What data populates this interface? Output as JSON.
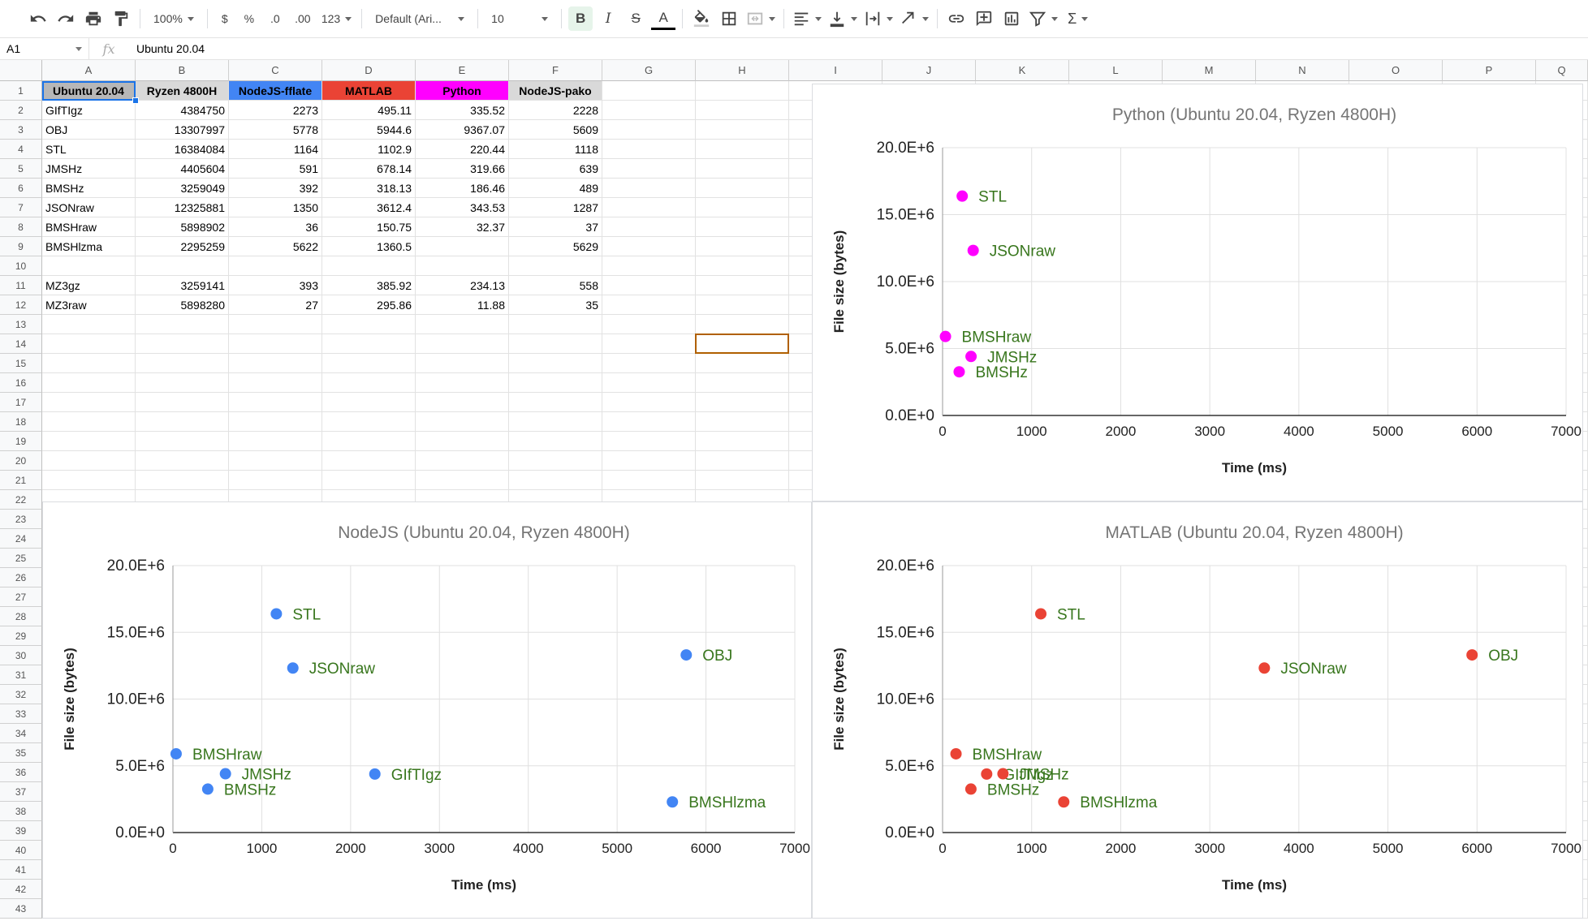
{
  "toolbar": {
    "zoom": "100%",
    "currency": "$",
    "percent": "%",
    "decrease_decimal": ".0",
    "increase_decimal": ".00",
    "number_format": "123",
    "font_family": "Default (Ari...",
    "font_size": "10",
    "bold": "B",
    "italic": "I",
    "strike": "S",
    "text_color": "A",
    "sum": "Σ"
  },
  "formula_bar": {
    "cell_ref": "A1",
    "fx": "fx",
    "value": "Ubuntu 20.04"
  },
  "columns": [
    "A",
    "B",
    "C",
    "D",
    "E",
    "F",
    "G",
    "H",
    "I",
    "J",
    "K",
    "L",
    "M",
    "N",
    "O",
    "P",
    "Q"
  ],
  "row_numbers": [
    "1",
    "2",
    "3",
    "4",
    "5",
    "6",
    "7",
    "8",
    "9",
    "10",
    "11",
    "12",
    "13",
    "14",
    "15",
    "16",
    "17",
    "18",
    "19",
    "20",
    "21",
    "22",
    "23",
    "24",
    "25",
    "26",
    "27",
    "28",
    "29",
    "30",
    "31",
    "32",
    "33",
    "34",
    "35",
    "36",
    "37",
    "38",
    "39",
    "40",
    "41",
    "42",
    "43"
  ],
  "headers": [
    {
      "text": "Ubuntu 20.04",
      "bg": "#b7b7b7",
      "color": "#000000"
    },
    {
      "text": "Ryzen 4800H",
      "bg": "#d9d9d9",
      "color": "#000000"
    },
    {
      "text": "NodeJS-fflate",
      "bg": "#4285f4",
      "color": "#000000"
    },
    {
      "text": "MATLAB",
      "bg": "#ea4335",
      "color": "#000000"
    },
    {
      "text": "Python",
      "bg": "#ff00ff",
      "color": "#000000"
    },
    {
      "text": "NodeJS-pako",
      "bg": "#d9d9d9",
      "color": "#000000"
    }
  ],
  "rows": [
    [
      "GIfTIgz",
      "4384750",
      "2273",
      "495.11",
      "335.52",
      "2228"
    ],
    [
      "OBJ",
      "13307997",
      "5778",
      "5944.6",
      "9367.07",
      "5609"
    ],
    [
      "STL",
      "16384084",
      "1164",
      "1102.9",
      "220.44",
      "1118"
    ],
    [
      "JMSHz",
      "4405604",
      "591",
      "678.14",
      "319.66",
      "639"
    ],
    [
      "BMSHz",
      "3259049",
      "392",
      "318.13",
      "186.46",
      "489"
    ],
    [
      "JSONraw",
      "12325881",
      "1350",
      "3612.4",
      "343.53",
      "1287"
    ],
    [
      "BMSHraw",
      "5898902",
      "36",
      "150.75",
      "32.37",
      "37"
    ],
    [
      "BMSHlzma",
      "2295259",
      "5622",
      "1360.5",
      "",
      "5629"
    ],
    [
      "",
      "",
      "",
      "",
      "",
      ""
    ],
    [
      "MZ3gz",
      "3259141",
      "393",
      "385.92",
      "234.13",
      "558"
    ],
    [
      "MZ3raw",
      "5898280",
      "27",
      "295.86",
      "11.88",
      "35"
    ]
  ],
  "chart_data": [
    {
      "id": "python",
      "type": "scatter",
      "title": "Python (Ubuntu 20.04, Ryzen 4800H)",
      "xlabel": "Time (ms)",
      "ylabel": "File size (bytes)",
      "xlim": [
        0,
        7000
      ],
      "ylim": [
        0,
        20000000
      ],
      "xticks": [
        "0",
        "1000",
        "2000",
        "3000",
        "4000",
        "5000",
        "6000",
        "7000"
      ],
      "yticks": [
        "0.0E+0",
        "5.0E+6",
        "10.0E+6",
        "15.0E+6",
        "20.0E+6"
      ],
      "color": "#ff00ff",
      "points": [
        {
          "label": "STL",
          "x": 220.44,
          "y": 16384084
        },
        {
          "label": "JSONraw",
          "x": 343.53,
          "y": 12325881
        },
        {
          "label": "BMSHraw",
          "x": 32.37,
          "y": 5898902
        },
        {
          "label": "JMSHz",
          "x": 319.66,
          "y": 4405604
        },
        {
          "label": "BMSHz",
          "x": 186.46,
          "y": 3259049
        }
      ]
    },
    {
      "id": "nodejs",
      "type": "scatter",
      "title": "NodeJS (Ubuntu 20.04, Ryzen 4800H)",
      "xlabel": "Time (ms)",
      "ylabel": "File size (bytes)",
      "xlim": [
        0,
        7000
      ],
      "ylim": [
        0,
        20000000
      ],
      "xticks": [
        "0",
        "1000",
        "2000",
        "3000",
        "4000",
        "5000",
        "6000",
        "7000"
      ],
      "yticks": [
        "0.0E+0",
        "5.0E+6",
        "10.0E+6",
        "15.0E+6",
        "20.0E+6"
      ],
      "color": "#4285f4",
      "points": [
        {
          "label": "STL",
          "x": 1164,
          "y": 16384084
        },
        {
          "label": "OBJ",
          "x": 5778,
          "y": 13307997
        },
        {
          "label": "JSONraw",
          "x": 1350,
          "y": 12325881
        },
        {
          "label": "BMSHraw",
          "x": 36,
          "y": 5898902
        },
        {
          "label": "JMSHz",
          "x": 591,
          "y": 4405604
        },
        {
          "label": "GIfTIgz",
          "x": 2273,
          "y": 4384750
        },
        {
          "label": "BMSHz",
          "x": 392,
          "y": 3259049
        },
        {
          "label": "BMSHlzma",
          "x": 5622,
          "y": 2295259
        }
      ]
    },
    {
      "id": "matlab",
      "type": "scatter",
      "title": "MATLAB (Ubuntu 20.04, Ryzen 4800H)",
      "xlabel": "Time (ms)",
      "ylabel": "File size (bytes)",
      "xlim": [
        0,
        7000
      ],
      "ylim": [
        0,
        20000000
      ],
      "xticks": [
        "0",
        "1000",
        "2000",
        "3000",
        "4000",
        "5000",
        "6000",
        "7000"
      ],
      "yticks": [
        "0.0E+0",
        "5.0E+6",
        "10.0E+6",
        "15.0E+6",
        "20.0E+6"
      ],
      "color": "#ea4335",
      "points": [
        {
          "label": "STL",
          "x": 1102.9,
          "y": 16384084
        },
        {
          "label": "OBJ",
          "x": 5944.6,
          "y": 13307997
        },
        {
          "label": "JSONraw",
          "x": 3612.4,
          "y": 12325881
        },
        {
          "label": "BMSHraw",
          "x": 150.75,
          "y": 5898902
        },
        {
          "label": "GIfTIgz",
          "x": 495.11,
          "y": 4384750
        },
        {
          "label": "JMSHz",
          "x": 678.14,
          "y": 4405604
        },
        {
          "label": "BMSHz",
          "x": 318.13,
          "y": 3259049
        },
        {
          "label": "BMSHlzma",
          "x": 1360.5,
          "y": 2295259
        }
      ]
    }
  ],
  "style": {
    "label_color": "#38761d",
    "title_color": "#757575",
    "grid_color": "#e0e0e0"
  }
}
